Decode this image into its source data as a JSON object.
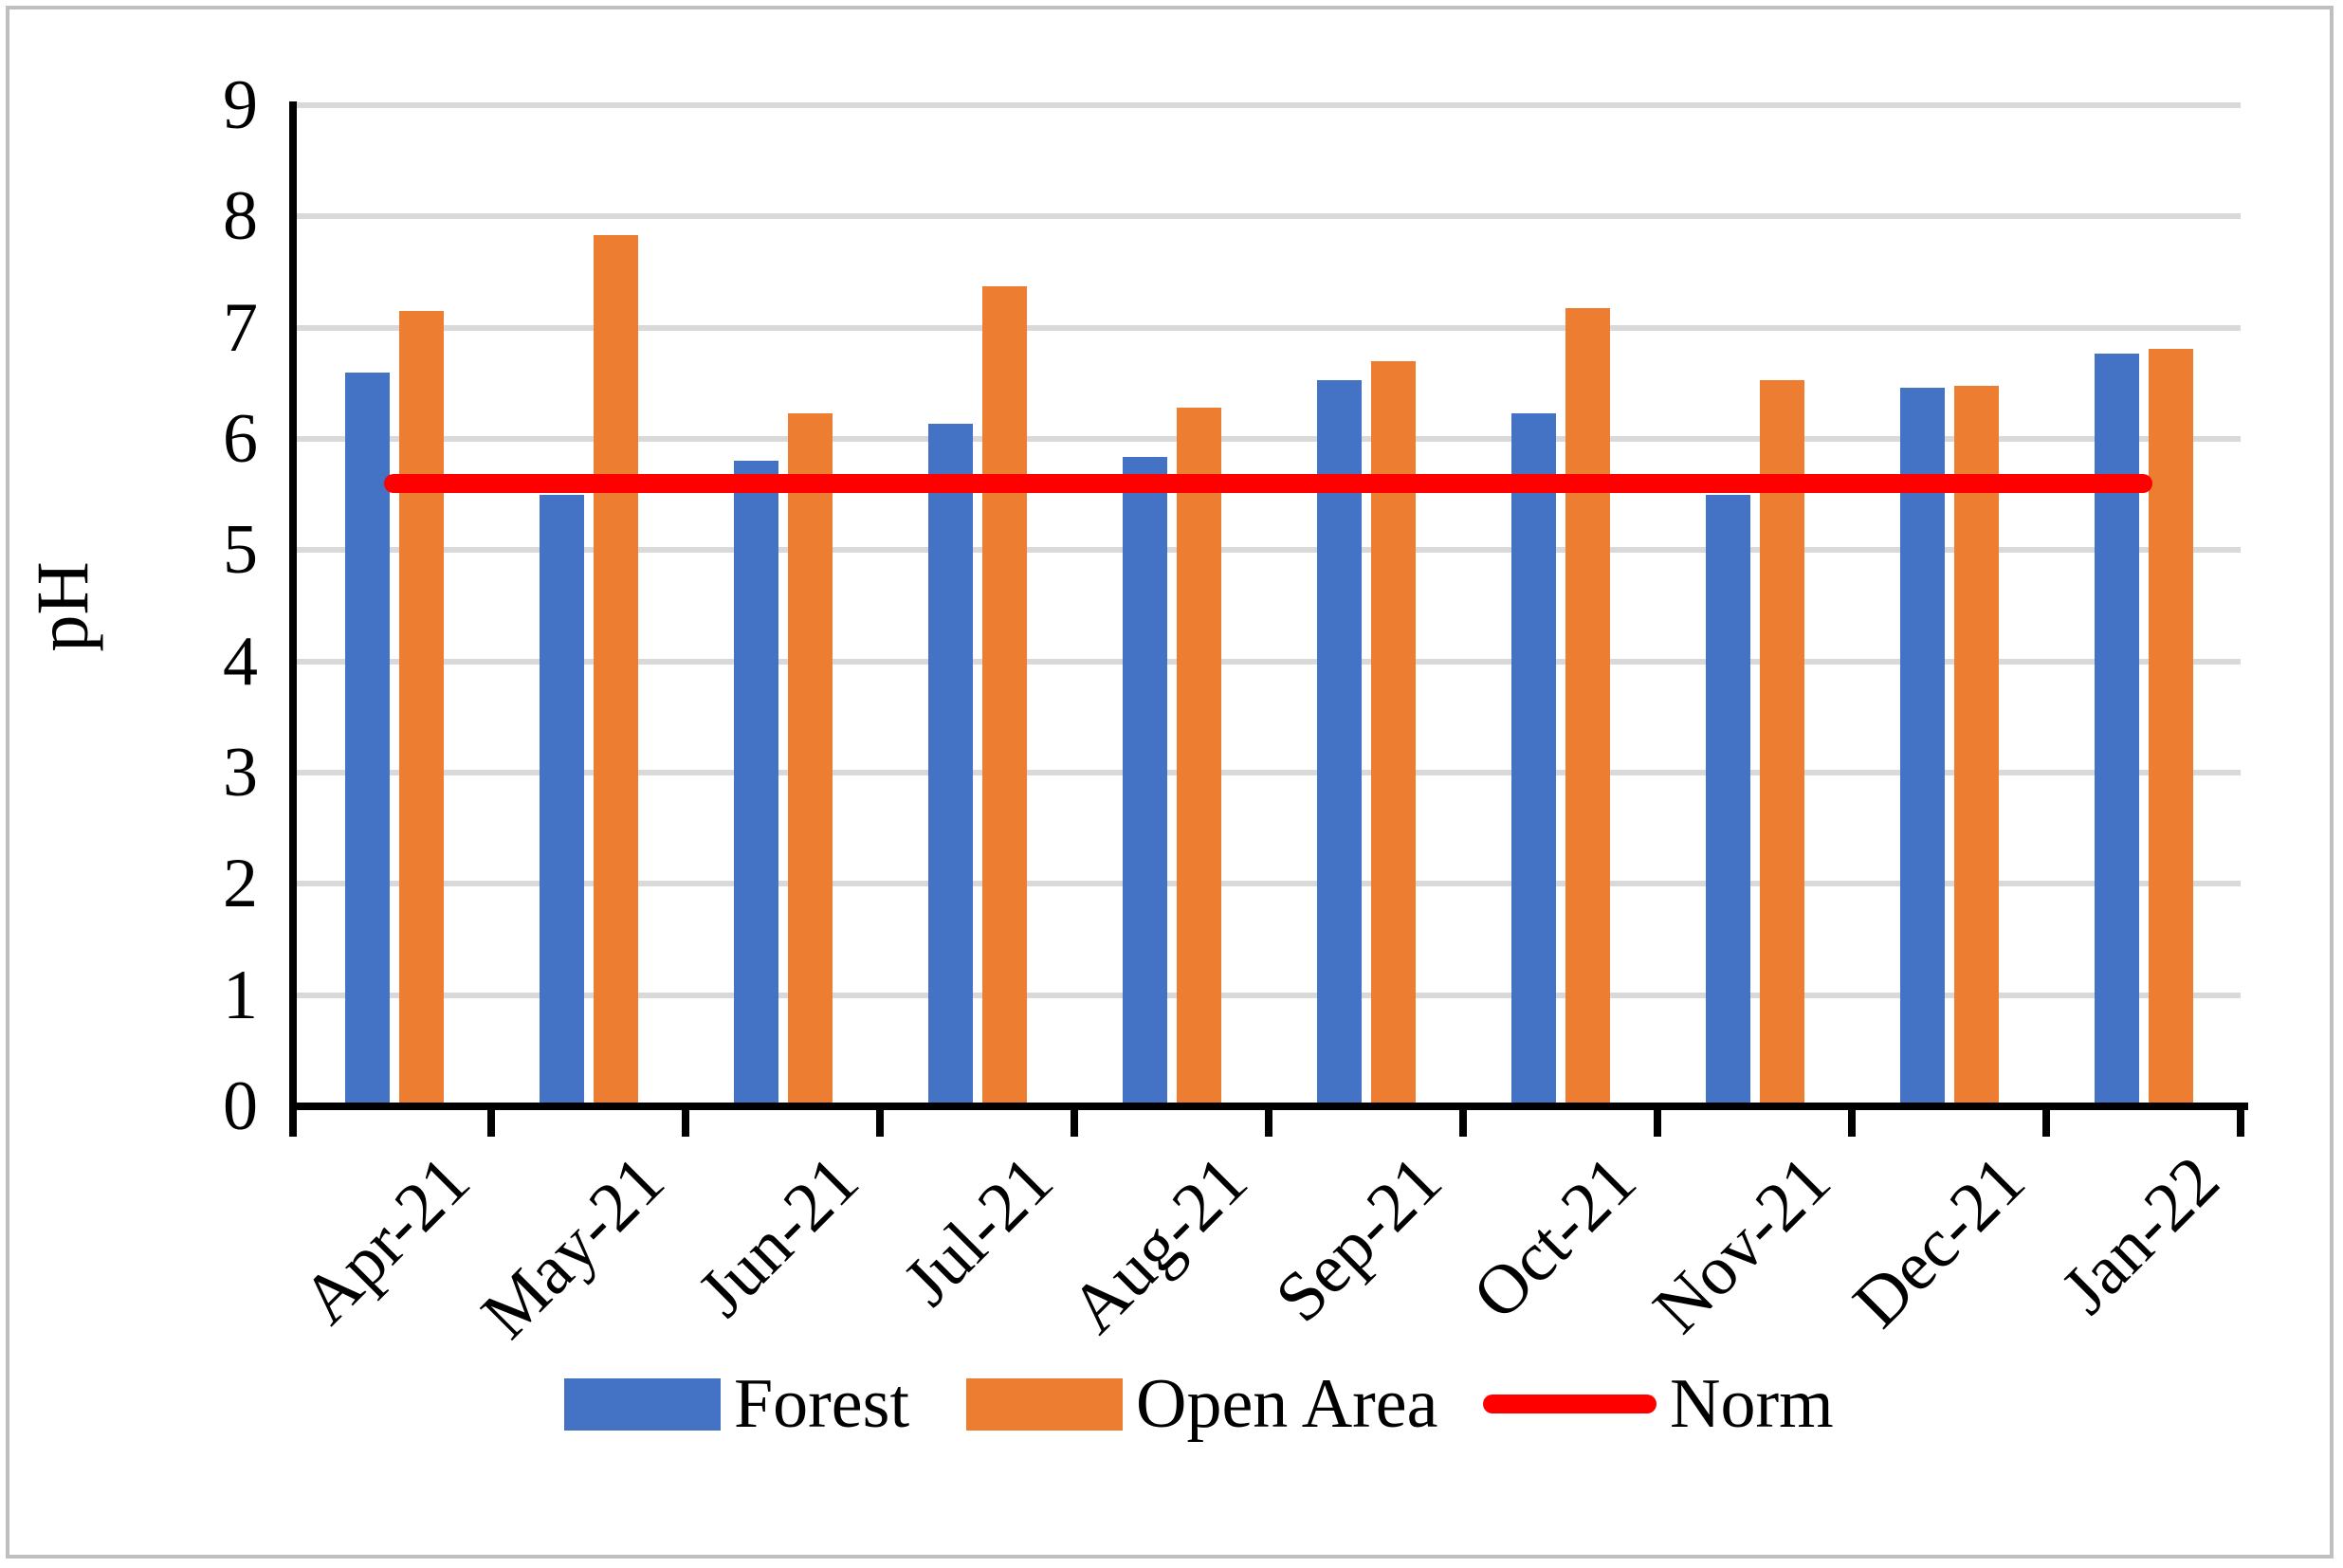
{
  "figure": {
    "background": "#ffffff",
    "border_color": "#bfbfbf"
  },
  "chart_data": {
    "type": "bar",
    "title": "",
    "xlabel": "",
    "ylabel": "pH",
    "ylim": [
      0,
      9
    ],
    "ytick_interval": 1,
    "yticks": [
      "0",
      "1",
      "2",
      "3",
      "4",
      "5",
      "6",
      "7",
      "8",
      "9"
    ],
    "grid": "horizontal",
    "gridline_color": "#d9d9d9",
    "axis_color": "#000000",
    "legend_position": "bottom",
    "categories": [
      "Apr-21",
      "May-21",
      "Jun-21",
      "Jul-21",
      "Aug-21",
      "Sep-21",
      "Oct-21",
      "Nov-21",
      "Dec-21",
      "Jan-22"
    ],
    "series": [
      {
        "name": "Forest",
        "type": "bar",
        "color": "#4472C4",
        "values": [
          6.6,
          5.5,
          5.8,
          6.14,
          5.84,
          6.53,
          6.23,
          5.5,
          6.46,
          6.77
        ]
      },
      {
        "name": "Open Area",
        "type": "bar",
        "color": "#ED7D31",
        "values": [
          7.15,
          7.83,
          6.23,
          7.37,
          6.28,
          6.7,
          7.18,
          6.53,
          6.48,
          6.81
        ]
      },
      {
        "name": "Norm",
        "type": "line",
        "color": "#FF0000",
        "norm_value": 5.6,
        "values": [
          5.6,
          5.6,
          5.6,
          5.6,
          5.6,
          5.6,
          5.6,
          5.6,
          5.6,
          5.6
        ]
      }
    ]
  }
}
